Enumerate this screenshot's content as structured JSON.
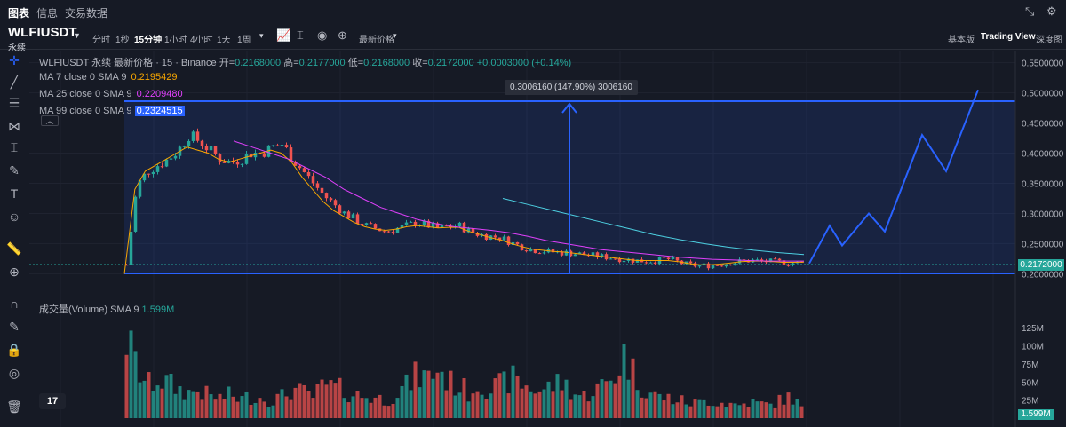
{
  "topbar": {
    "tabs": [
      {
        "label": "图表",
        "active": true
      },
      {
        "label": "信息",
        "active": false
      },
      {
        "label": "交易数据",
        "active": false
      }
    ],
    "icons": [
      "collapse-icon",
      "settings-icon"
    ]
  },
  "symbol": {
    "name": "WLFIUSDT",
    "subtitle": "永续"
  },
  "toolbar": {
    "timeframes": [
      {
        "label": "分时",
        "active": false
      },
      {
        "label": "1秒",
        "active": false
      },
      {
        "label": "15分钟",
        "active": true
      },
      {
        "label": "1小时",
        "active": false
      },
      {
        "label": "4小时",
        "active": false
      },
      {
        "label": "1天",
        "active": false
      },
      {
        "label": "1周",
        "active": false
      }
    ],
    "price_type": "最新价格",
    "views": [
      {
        "label": "基本版",
        "active": false
      },
      {
        "label": "Trading View",
        "active": true
      },
      {
        "label": "深度图",
        "active": false
      }
    ]
  },
  "legend": {
    "title": "WLFIUSDT 永续 最新价格 · 15 · Binance",
    "open_label": "开=",
    "open": "0.2168000",
    "high_label": "高=",
    "high": "0.2177000",
    "low_label": "低=",
    "low": "0.2168000",
    "close_label": "收=",
    "close": "0.2172000",
    "change": "+0.0003000 (+0.14%)",
    "ma": [
      {
        "label": "MA 7 close 0 SMA 9",
        "value": "0.2195429",
        "color": "#f7a600"
      },
      {
        "label": "MA 25 close 0 SMA 9",
        "value": "0.2209480",
        "color": "#e040fb"
      },
      {
        "label": "MA 99 close 0 SMA 9",
        "value": "0.2324515",
        "color": "#4dd0e1"
      }
    ]
  },
  "volume_legend": {
    "label": "成交量(Volume) SMA 9",
    "value": "1.599M"
  },
  "measure_tooltip": "0.3006160 (147.90%) 3006160",
  "current_price": "0.2172000",
  "current_volume": "1.599M",
  "price_axis": [
    "0.5500000",
    "0.5000000",
    "0.4500000",
    "0.4000000",
    "0.3500000",
    "0.3000000",
    "0.2500000",
    "0.2000000"
  ],
  "volume_axis": [
    "125M",
    "100M",
    "75M",
    "50M",
    "25M"
  ],
  "colors": {
    "up": "#26a69a",
    "down": "#ef5350",
    "box": "#2962ff",
    "background": "#161a25"
  },
  "chart_data": {
    "type": "candlestick",
    "price_range": [
      0.18,
      0.57
    ],
    "volume_range": [
      0,
      140
    ],
    "price_trend": [
      0.215,
      0.345,
      0.37,
      0.38,
      0.39,
      0.405,
      0.43,
      0.42,
      0.405,
      0.39,
      0.385,
      0.39,
      0.4,
      0.4,
      0.41,
      0.415,
      0.39,
      0.37,
      0.35,
      0.33,
      0.315,
      0.3,
      0.29,
      0.28,
      0.275,
      0.27,
      0.275,
      0.28,
      0.285,
      0.28,
      0.275,
      0.278,
      0.28,
      0.27,
      0.265,
      0.262,
      0.26,
      0.252,
      0.245,
      0.24,
      0.238,
      0.236,
      0.235,
      0.234,
      0.232,
      0.23,
      0.228,
      0.226,
      0.224,
      0.222,
      0.221,
      0.222,
      0.225,
      0.22,
      0.215,
      0.213,
      0.214,
      0.215,
      0.218,
      0.22,
      0.222,
      0.221,
      0.22,
      0.219,
      0.218,
      0.2172
    ],
    "volume_trend": [
      110,
      70,
      45,
      55,
      48,
      40,
      35,
      38,
      30,
      28,
      32,
      26,
      30,
      28,
      25,
      30,
      40,
      35,
      30,
      45,
      42,
      38,
      32,
      30,
      28,
      25,
      35,
      45,
      60,
      55,
      70,
      50,
      45,
      35,
      50,
      40,
      45,
      55,
      48,
      40,
      38,
      45,
      50,
      35,
      30,
      40,
      45,
      60,
      90,
      55,
      40,
      30,
      28,
      25,
      22,
      20,
      25,
      22,
      20,
      18,
      22,
      20,
      18,
      25,
      30,
      15
    ],
    "ma7": [
      0.2,
      0.34,
      0.37,
      0.38,
      0.39,
      0.4,
      0.41,
      0.405,
      0.4,
      0.39,
      0.385,
      0.39,
      0.395,
      0.4,
      0.405,
      0.4,
      0.385,
      0.36,
      0.34,
      0.32,
      0.305,
      0.295,
      0.285,
      0.278,
      0.274,
      0.272,
      0.274,
      0.278,
      0.28,
      0.278,
      0.276,
      0.277,
      0.277,
      0.27,
      0.265,
      0.26,
      0.256,
      0.25,
      0.245,
      0.241,
      0.239,
      0.237,
      0.236,
      0.234,
      0.232,
      0.23,
      0.228,
      0.226,
      0.224,
      0.222,
      0.222,
      0.222,
      0.222,
      0.22,
      0.217,
      0.215,
      0.215,
      0.216,
      0.218,
      0.22,
      0.221,
      0.221,
      0.22,
      0.219,
      0.219,
      0.2195
    ],
    "ma25": [
      0.42,
      0.41,
      0.4,
      0.39,
      0.375,
      0.36,
      0.34,
      0.325,
      0.31,
      0.3,
      0.29,
      0.283,
      0.278,
      0.275,
      0.272,
      0.268,
      0.262,
      0.255,
      0.25,
      0.245,
      0.24,
      0.237,
      0.234,
      0.231,
      0.228,
      0.226,
      0.224,
      0.223,
      0.222,
      0.221,
      0.221,
      0.221
    ],
    "ma99": [
      0.325,
      0.315,
      0.305,
      0.295,
      0.285,
      0.275,
      0.265,
      0.257,
      0.25,
      0.244,
      0.239,
      0.235,
      0.232
    ],
    "projection": [
      0.2172,
      0.28,
      0.247,
      0.3,
      0.27,
      0.43,
      0.37,
      0.505
    ],
    "measure_box": {
      "top": 0.505,
      "bottom": 0.2035
    }
  }
}
